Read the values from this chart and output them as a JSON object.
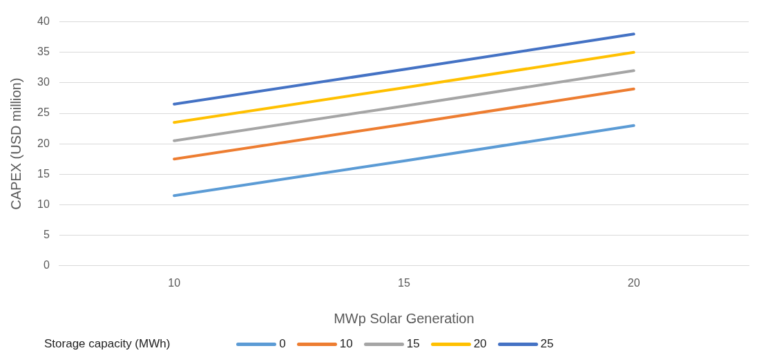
{
  "chart_data": {
    "type": "line",
    "xlabel": "MWp Solar Generation",
    "ylabel": "CAPEX (USD million)",
    "legend_title": "Storage capacity (MWh)",
    "categories": [
      "10",
      "15",
      "20"
    ],
    "series": [
      {
        "name": "0",
        "color": "#5b9bd5",
        "values": [
          11.5,
          17.2,
          23
        ]
      },
      {
        "name": "10",
        "color": "#ed7d31",
        "values": [
          17.5,
          23.2,
          29
        ]
      },
      {
        "name": "15",
        "color": "#a5a5a5",
        "values": [
          20.5,
          26.2,
          32
        ]
      },
      {
        "name": "20",
        "color": "#ffc000",
        "values": [
          23.5,
          29.2,
          35
        ]
      },
      {
        "name": "25",
        "color": "#4472c4",
        "values": [
          26.5,
          32.2,
          38
        ]
      }
    ],
    "ylim": [
      0,
      40
    ],
    "yticks": [
      0,
      5,
      10,
      15,
      20,
      25,
      30,
      35,
      40
    ],
    "grid": "y",
    "legend": "bottom",
    "marker": "none",
    "line_style": "solid"
  }
}
